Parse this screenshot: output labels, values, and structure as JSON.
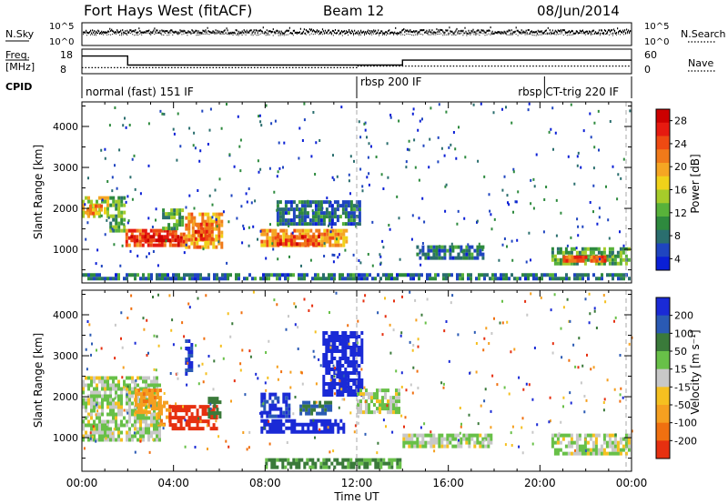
{
  "header": {
    "station": "Fort Hays West (fitACF)",
    "beam": "Beam 12",
    "date": "08/Jun/2014"
  },
  "noise_panel": {
    "left_label": "N.Sky",
    "right_label": "N.Search",
    "left_ticks": [
      "10^5",
      "10^0"
    ],
    "right_ticks": [
      "10^5",
      "10^0"
    ]
  },
  "freq_panel": {
    "left_label_1": "Freq.",
    "left_label_2": "[MHz]",
    "right_label": "Nave",
    "left_ticks": [
      "18",
      "8"
    ],
    "right_ticks": [
      "60",
      "0"
    ],
    "freq_mhz": {
      "t": [
        0,
        2.0,
        2.0,
        14.0,
        14.0,
        24
      ],
      "v": [
        16.0,
        16.0,
        10.5,
        10.5,
        13.5,
        13.5
      ]
    },
    "nave": {
      "t": [
        0,
        12.0,
        12.0,
        24
      ],
      "v": [
        18,
        18,
        23,
        23
      ]
    }
  },
  "cpid": {
    "label": "CPID",
    "modes": [
      {
        "name": "normal (fast) 151 IF",
        "start": 0,
        "end": 12.0
      },
      {
        "name": "rbsp 200 IF",
        "start": 12.0,
        "end": 20.2
      },
      {
        "name": "rbsp CT-trig 220 IF",
        "start": 20.2,
        "end": 24
      }
    ]
  },
  "power_panel": {
    "ylabel": "Slant Range [km]",
    "yticks": [
      "1000",
      "2000",
      "3000",
      "4000"
    ],
    "cbar_label": "Power [dB]",
    "cbar_ticks": [
      "4",
      "8",
      "12",
      "16",
      "20",
      "24",
      "28"
    ],
    "cbar_colors": [
      "#0a1fd6",
      "#1f45c0",
      "#2a6e6e",
      "#2e8a3e",
      "#58b23a",
      "#a6cc2a",
      "#f0d21a",
      "#f5a623",
      "#f07a1a",
      "#ee4a12",
      "#e61a10",
      "#cc0000"
    ]
  },
  "velocity_panel": {
    "ylabel": "Slant Range [km]",
    "yticks": [
      "1000",
      "2000",
      "3000",
      "4000"
    ],
    "cbar_label": "Velocity [m s⁻¹]",
    "cbar_ticks": [
      "200",
      "100",
      "50",
      "15",
      "-15",
      "-50",
      "-100",
      "-200"
    ],
    "cbar_colors": [
      "#1a2ad6",
      "#2a5ab4",
      "#3a7a3a",
      "#68c048",
      "#c8c8c8",
      "#f5c020",
      "#f5a020",
      "#f07010",
      "#e63010"
    ]
  },
  "xaxis": {
    "label": "Time UT",
    "ticks": [
      "00:00",
      "04:00",
      "08:00",
      "12:00",
      "16:00",
      "20:00",
      "00:00"
    ]
  },
  "chart_data": {
    "type": "heatmap",
    "x_range_hours": [
      0,
      24
    ],
    "y_range_km": [
      180,
      4600
    ],
    "power_regions_db": [
      {
        "t": [
          0.0,
          1.2
        ],
        "r": [
          1700,
          2300
        ],
        "db": 16
      },
      {
        "t": [
          0.2,
          1.0
        ],
        "r": [
          1750,
          2100
        ],
        "db": 20
      },
      {
        "t": [
          1.2,
          2.0
        ],
        "r": [
          1400,
          2300
        ],
        "db": 12
      },
      {
        "t": [
          1.9,
          4.6
        ],
        "r": [
          1050,
          1500
        ],
        "db": 24
      },
      {
        "t": [
          2.0,
          4.4
        ],
        "r": [
          1100,
          1350
        ],
        "db": 28
      },
      {
        "t": [
          3.5,
          4.5
        ],
        "r": [
          1450,
          2000
        ],
        "db": 12
      },
      {
        "t": [
          4.5,
          6.2
        ],
        "r": [
          1000,
          1900
        ],
        "db": 20
      },
      {
        "t": [
          4.8,
          5.8
        ],
        "r": [
          1200,
          1650
        ],
        "db": 24
      },
      {
        "t": [
          7.8,
          11.7
        ],
        "r": [
          1000,
          1500
        ],
        "db": 20
      },
      {
        "t": [
          8.5,
          10.5
        ],
        "r": [
          1050,
          1350
        ],
        "db": 24
      },
      {
        "t": [
          8.5,
          12.2
        ],
        "r": [
          1500,
          2200
        ],
        "db": 8
      },
      {
        "t": [
          14.6,
          17.6
        ],
        "r": [
          700,
          1100
        ],
        "db": 8
      },
      {
        "t": [
          20.5,
          24.0
        ],
        "r": [
          550,
          1050
        ],
        "db": 12
      },
      {
        "t": [
          21.0,
          23.0
        ],
        "r": [
          600,
          850
        ],
        "db": 24
      },
      {
        "t": [
          0.0,
          24.0
        ],
        "r": [
          200,
          420
        ],
        "db": 8
      }
    ],
    "velocity_regions_ms": [
      {
        "t": [
          0.0,
          3.5
        ],
        "r": [
          900,
          2500
        ],
        "v": 0
      },
      {
        "t": [
          2.3,
          3.5
        ],
        "r": [
          1500,
          2200
        ],
        "v": -60
      },
      {
        "t": [
          3.3,
          4.0
        ],
        "r": [
          1200,
          1900
        ],
        "v": -60
      },
      {
        "t": [
          3.8,
          6.0
        ],
        "r": [
          1100,
          1800
        ],
        "v": -180
      },
      {
        "t": [
          4.5,
          4.9
        ],
        "r": [
          2500,
          3400
        ],
        "v": 160
      },
      {
        "t": [
          5.5,
          6.2
        ],
        "r": [
          1400,
          2000
        ],
        "v": 60
      },
      {
        "t": [
          7.8,
          11.5
        ],
        "r": [
          1050,
          1450
        ],
        "v": 180
      },
      {
        "t": [
          7.8,
          9.2
        ],
        "r": [
          1450,
          2100
        ],
        "v": 160
      },
      {
        "t": [
          9.5,
          11.0
        ],
        "r": [
          1500,
          1900
        ],
        "v": 80
      },
      {
        "t": [
          10.5,
          12.3
        ],
        "r": [
          2000,
          3600
        ],
        "v": 200
      },
      {
        "t": [
          12.0,
          14.0
        ],
        "r": [
          1500,
          2200
        ],
        "v": 0
      },
      {
        "t": [
          14.0,
          18.0
        ],
        "r": [
          700,
          1100
        ],
        "v": 0
      },
      {
        "t": [
          20.5,
          24.0
        ],
        "r": [
          550,
          1100
        ],
        "v": 0
      },
      {
        "t": [
          8.0,
          14.0
        ],
        "r": [
          200,
          500
        ],
        "v": 40
      }
    ],
    "axis_labels": {
      "x": "Time UT",
      "y": "Slant Range [km]"
    }
  }
}
